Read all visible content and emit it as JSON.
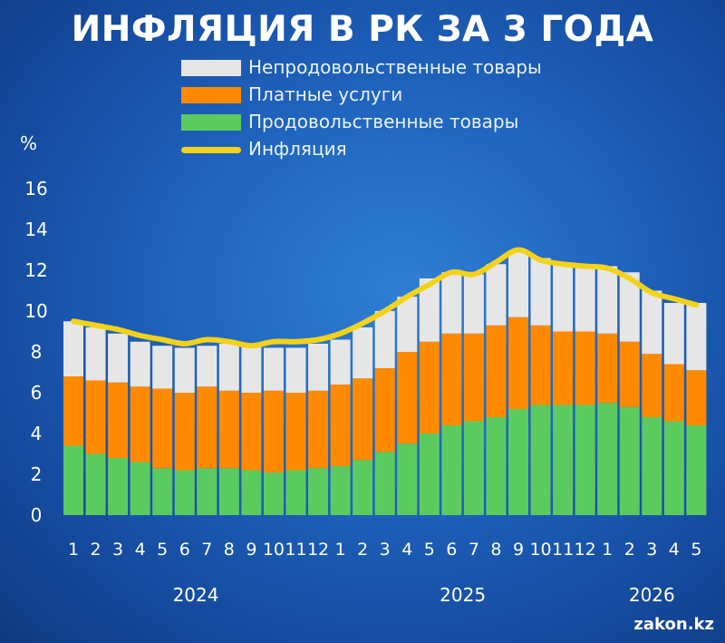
{
  "title": "ИНФЛЯЦИЯ В РК ЗА 3 ГОДА",
  "unit_label": "%",
  "watermark": "zakon.kz",
  "legend": [
    {
      "label": "Непродовольственные товары",
      "kind": "bar",
      "color": "#e6e6e6"
    },
    {
      "label": "Платные услуги",
      "kind": "bar",
      "color": "#ff8a00"
    },
    {
      "label": "Продовольственные товары",
      "kind": "bar",
      "color": "#5ccb5f"
    },
    {
      "label": "Инфляция",
      "kind": "line",
      "color": "#f5d21a"
    }
  ],
  "chart_data": {
    "type": "bar",
    "stacked": true,
    "categories": [
      "1",
      "2",
      "3",
      "4",
      "5",
      "6",
      "7",
      "8",
      "9",
      "10",
      "11",
      "12",
      "1",
      "2",
      "3",
      "4",
      "5",
      "6",
      "7",
      "8",
      "9",
      "10",
      "11",
      "12",
      "1",
      "2",
      "3",
      "4",
      "5"
    ],
    "year_labels": [
      {
        "label": "2024",
        "start_index": 0,
        "end_index": 11
      },
      {
        "label": "2025",
        "start_index": 12,
        "end_index": 23
      },
      {
        "label": "2026",
        "start_index": 24,
        "end_index": 28
      }
    ],
    "ylim": [
      0,
      16
    ],
    "yticks": [
      0,
      2,
      4,
      6,
      8,
      10,
      12,
      14,
      16
    ],
    "grid": false,
    "legend_position": "top",
    "series": [
      {
        "name": "Продовольственные товары",
        "color": "#5ccb5f",
        "values": [
          3.4,
          3.0,
          2.8,
          2.6,
          2.3,
          2.2,
          2.3,
          2.3,
          2.2,
          2.1,
          2.2,
          2.3,
          2.4,
          2.7,
          3.1,
          3.5,
          4.0,
          4.4,
          4.6,
          4.8,
          5.2,
          5.4,
          5.4,
          5.4,
          5.5,
          5.3,
          4.8,
          4.6,
          4.4
        ]
      },
      {
        "name": "Платные услуги",
        "color": "#ff8a00",
        "values": [
          3.4,
          3.6,
          3.7,
          3.7,
          3.9,
          3.8,
          4.0,
          3.8,
          3.8,
          4.0,
          3.8,
          3.8,
          4.0,
          4.0,
          4.1,
          4.5,
          4.5,
          4.5,
          4.3,
          4.5,
          4.5,
          3.9,
          3.6,
          3.6,
          3.4,
          3.2,
          3.1,
          2.8,
          2.7
        ]
      },
      {
        "name": "Непродовольственные товары",
        "color": "#e6e6e6",
        "values": [
          2.7,
          2.6,
          2.4,
          2.2,
          2.1,
          2.2,
          2.0,
          2.3,
          2.3,
          2.1,
          2.2,
          2.3,
          2.2,
          2.5,
          2.8,
          2.7,
          3.1,
          3.0,
          2.9,
          3.0,
          3.2,
          3.3,
          3.3,
          3.2,
          3.3,
          3.4,
          3.1,
          3.0,
          3.3
        ]
      },
      {
        "name": "Инфляция",
        "type": "line",
        "color": "#f5d21a",
        "values": [
          9.5,
          9.3,
          9.1,
          8.8,
          8.6,
          8.4,
          8.6,
          8.5,
          8.3,
          8.5,
          8.5,
          8.6,
          8.9,
          9.4,
          10.0,
          10.7,
          11.3,
          11.9,
          11.8,
          12.4,
          13.0,
          12.5,
          12.3,
          12.2,
          12.1,
          11.6,
          10.9,
          10.6,
          10.3
        ]
      }
    ]
  }
}
